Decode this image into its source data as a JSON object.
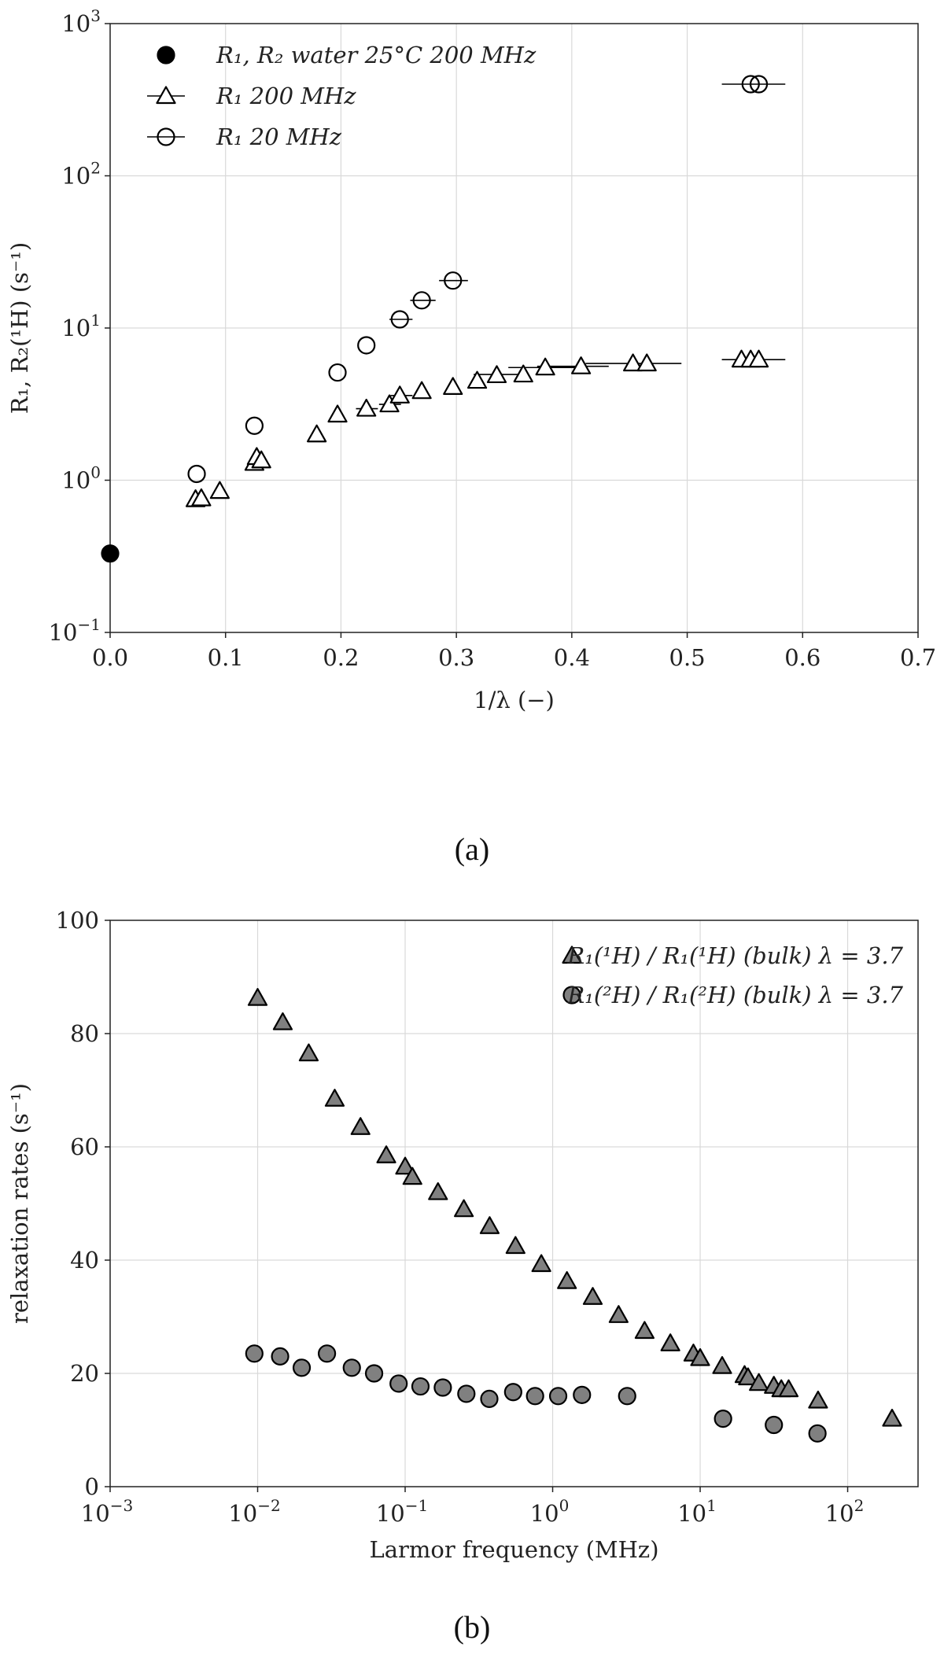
{
  "chart_data": [
    {
      "type": "scatter",
      "panel_label": "(a)",
      "xlabel": "1/λ (−)",
      "ylabel": "R₁, R₂(¹H) (s⁻¹)",
      "xlim": [
        0,
        0.7
      ],
      "ylim": [
        0.1,
        1000
      ],
      "yscale": "log",
      "grid": true,
      "legend_position": "top-left",
      "x_ticks": [
        "0.0",
        "0.1",
        "0.2",
        "0.3",
        "0.4",
        "0.5",
        "0.6",
        "0.7"
      ],
      "y_ticks": [
        {
          "base": "10",
          "exp": "−1"
        },
        {
          "base": "10",
          "exp": "0"
        },
        {
          "base": "10",
          "exp": "1"
        },
        {
          "base": "10",
          "exp": "2"
        },
        {
          "base": "10",
          "exp": "3"
        }
      ],
      "series": [
        {
          "name": "R₁, R₂ water 25°C 200 MHz",
          "marker": "filled-circle",
          "color": "#000000",
          "points": [
            {
              "x": 0.0,
              "y": 0.33
            }
          ]
        },
        {
          "name": "R₁ 200 MHz",
          "marker": "open-triangle",
          "color": "#000000",
          "points": [
            {
              "x": 0.074,
              "y": 0.75
            },
            {
              "x": 0.079,
              "y": 0.76
            },
            {
              "x": 0.095,
              "y": 0.85
            },
            {
              "x": 0.125,
              "y": 1.3
            },
            {
              "x": 0.127,
              "y": 1.42
            },
            {
              "x": 0.131,
              "y": 1.35
            },
            {
              "x": 0.179,
              "y": 2.0
            },
            {
              "x": 0.197,
              "y": 2.7
            },
            {
              "x": 0.222,
              "y": 2.95
            },
            {
              "x": 0.242,
              "y": 3.15
            },
            {
              "x": 0.251,
              "y": 3.6
            },
            {
              "x": 0.27,
              "y": 3.85
            },
            {
              "x": 0.297,
              "y": 4.1
            },
            {
              "x": 0.318,
              "y": 4.5
            },
            {
              "x": 0.335,
              "y": 4.9
            },
            {
              "x": 0.358,
              "y": 4.95
            },
            {
              "x": 0.377,
              "y": 5.5
            },
            {
              "x": 0.408,
              "y": 5.6
            },
            {
              "x": 0.453,
              "y": 5.85
            },
            {
              "x": 0.465,
              "y": 5.85
            },
            {
              "x": 0.547,
              "y": 6.2
            },
            {
              "x": 0.555,
              "y": 6.2
            },
            {
              "x": 0.562,
              "y": 6.2
            }
          ]
        },
        {
          "name": "R₁ 20 MHz",
          "marker": "open-circle",
          "color": "#000000",
          "points": [
            {
              "x": 0.075,
              "y": 1.1
            },
            {
              "x": 0.125,
              "y": 2.28
            },
            {
              "x": 0.197,
              "y": 5.1
            },
            {
              "x": 0.222,
              "y": 7.7
            },
            {
              "x": 0.251,
              "y": 11.4
            },
            {
              "x": 0.27,
              "y": 15.2
            },
            {
              "x": 0.297,
              "y": 20.5
            },
            {
              "x": 0.555,
              "y": 400
            },
            {
              "x": 0.562,
              "y": 400
            }
          ]
        }
      ],
      "error_bars": [
        {
          "y": 4.95,
          "x_low": 0.315,
          "x_high": 0.36
        },
        {
          "y": 5.5,
          "x_low": 0.345,
          "x_high": 0.41
        },
        {
          "y": 5.6,
          "x_low": 0.37,
          "x_high": 0.432
        },
        {
          "y": 5.85,
          "x_low": 0.412,
          "x_high": 0.495
        },
        {
          "y": 6.2,
          "x_low": 0.53,
          "x_high": 0.585
        },
        {
          "y": 20.5,
          "x_low": 0.285,
          "x_high": 0.31
        },
        {
          "y": 15.2,
          "x_low": 0.26,
          "x_high": 0.282
        },
        {
          "y": 11.4,
          "x_low": 0.242,
          "x_high": 0.262
        },
        {
          "y": 400,
          "x_low": 0.53,
          "x_high": 0.585
        },
        {
          "y": 2.95,
          "x_low": 0.213,
          "x_high": 0.232
        },
        {
          "y": 3.15,
          "x_low": 0.233,
          "x_high": 0.252
        },
        {
          "y": 3.6,
          "x_low": 0.243,
          "x_high": 0.262
        }
      ]
    },
    {
      "type": "scatter",
      "panel_label": "(b)",
      "xlabel": "Larmor frequency (MHz)",
      "ylabel": "relaxation rates (s⁻¹)",
      "xlim": [
        0.001,
        300
      ],
      "ylim": [
        0,
        100
      ],
      "xscale": "log",
      "grid": true,
      "legend_position": "top-right",
      "x_ticks": [
        {
          "base": "10",
          "exp": "−3"
        },
        {
          "base": "10",
          "exp": "−2"
        },
        {
          "base": "10",
          "exp": "−1"
        },
        {
          "base": "10",
          "exp": "0"
        },
        {
          "base": "10",
          "exp": "1"
        },
        {
          "base": "10",
          "exp": "2"
        }
      ],
      "y_ticks": [
        "0",
        "20",
        "40",
        "60",
        "80",
        "100"
      ],
      "series": [
        {
          "name": "R₁(¹H) / R₁(¹H) (bulk) λ = 3.7",
          "marker": "filled-triangle",
          "color": "#808080",
          "points": [
            {
              "x": 0.01,
              "y": 86.3
            },
            {
              "x": 0.0148,
              "y": 82.0
            },
            {
              "x": 0.0222,
              "y": 76.5
            },
            {
              "x": 0.0333,
              "y": 68.5
            },
            {
              "x": 0.0498,
              "y": 63.5
            },
            {
              "x": 0.0745,
              "y": 58.5
            },
            {
              "x": 0.1,
              "y": 56.5
            },
            {
              "x": 0.112,
              "y": 54.7
            },
            {
              "x": 0.167,
              "y": 52.0
            },
            {
              "x": 0.25,
              "y": 49.0
            },
            {
              "x": 0.374,
              "y": 46.0
            },
            {
              "x": 0.56,
              "y": 42.5
            },
            {
              "x": 0.838,
              "y": 39.3
            },
            {
              "x": 1.25,
              "y": 36.3
            },
            {
              "x": 1.87,
              "y": 33.5
            },
            {
              "x": 2.8,
              "y": 30.3
            },
            {
              "x": 4.2,
              "y": 27.5
            },
            {
              "x": 6.28,
              "y": 25.3
            },
            {
              "x": 9.0,
              "y": 23.5
            },
            {
              "x": 10.0,
              "y": 22.7
            },
            {
              "x": 14.1,
              "y": 21.3
            },
            {
              "x": 20.0,
              "y": 19.7
            },
            {
              "x": 21.1,
              "y": 19.3
            },
            {
              "x": 25.0,
              "y": 18.3
            },
            {
              "x": 31.6,
              "y": 17.8
            },
            {
              "x": 35.5,
              "y": 17.2
            },
            {
              "x": 39.8,
              "y": 17.2
            },
            {
              "x": 63.0,
              "y": 15.2
            },
            {
              "x": 200.0,
              "y": 12.0
            }
          ]
        },
        {
          "name": "R₁(²H) / R₁(²H) (bulk) λ = 3.7",
          "marker": "filled-circle",
          "color": "#808080",
          "points": [
            {
              "x": 0.0095,
              "y": 23.5
            },
            {
              "x": 0.0142,
              "y": 23.0
            },
            {
              "x": 0.0199,
              "y": 21.0
            },
            {
              "x": 0.0295,
              "y": 23.5
            },
            {
              "x": 0.0435,
              "y": 21.0
            },
            {
              "x": 0.0616,
              "y": 20.0
            },
            {
              "x": 0.0903,
              "y": 18.2
            },
            {
              "x": 0.127,
              "y": 17.7
            },
            {
              "x": 0.18,
              "y": 17.5
            },
            {
              "x": 0.26,
              "y": 16.4
            },
            {
              "x": 0.372,
              "y": 15.5
            },
            {
              "x": 0.54,
              "y": 16.7
            },
            {
              "x": 0.76,
              "y": 16.0
            },
            {
              "x": 1.09,
              "y": 16.0
            },
            {
              "x": 1.58,
              "y": 16.2
            },
            {
              "x": 3.2,
              "y": 16.0
            },
            {
              "x": 14.3,
              "y": 12.0
            },
            {
              "x": 31.6,
              "y": 10.9
            },
            {
              "x": 62.4,
              "y": 9.4
            }
          ]
        }
      ]
    }
  ]
}
